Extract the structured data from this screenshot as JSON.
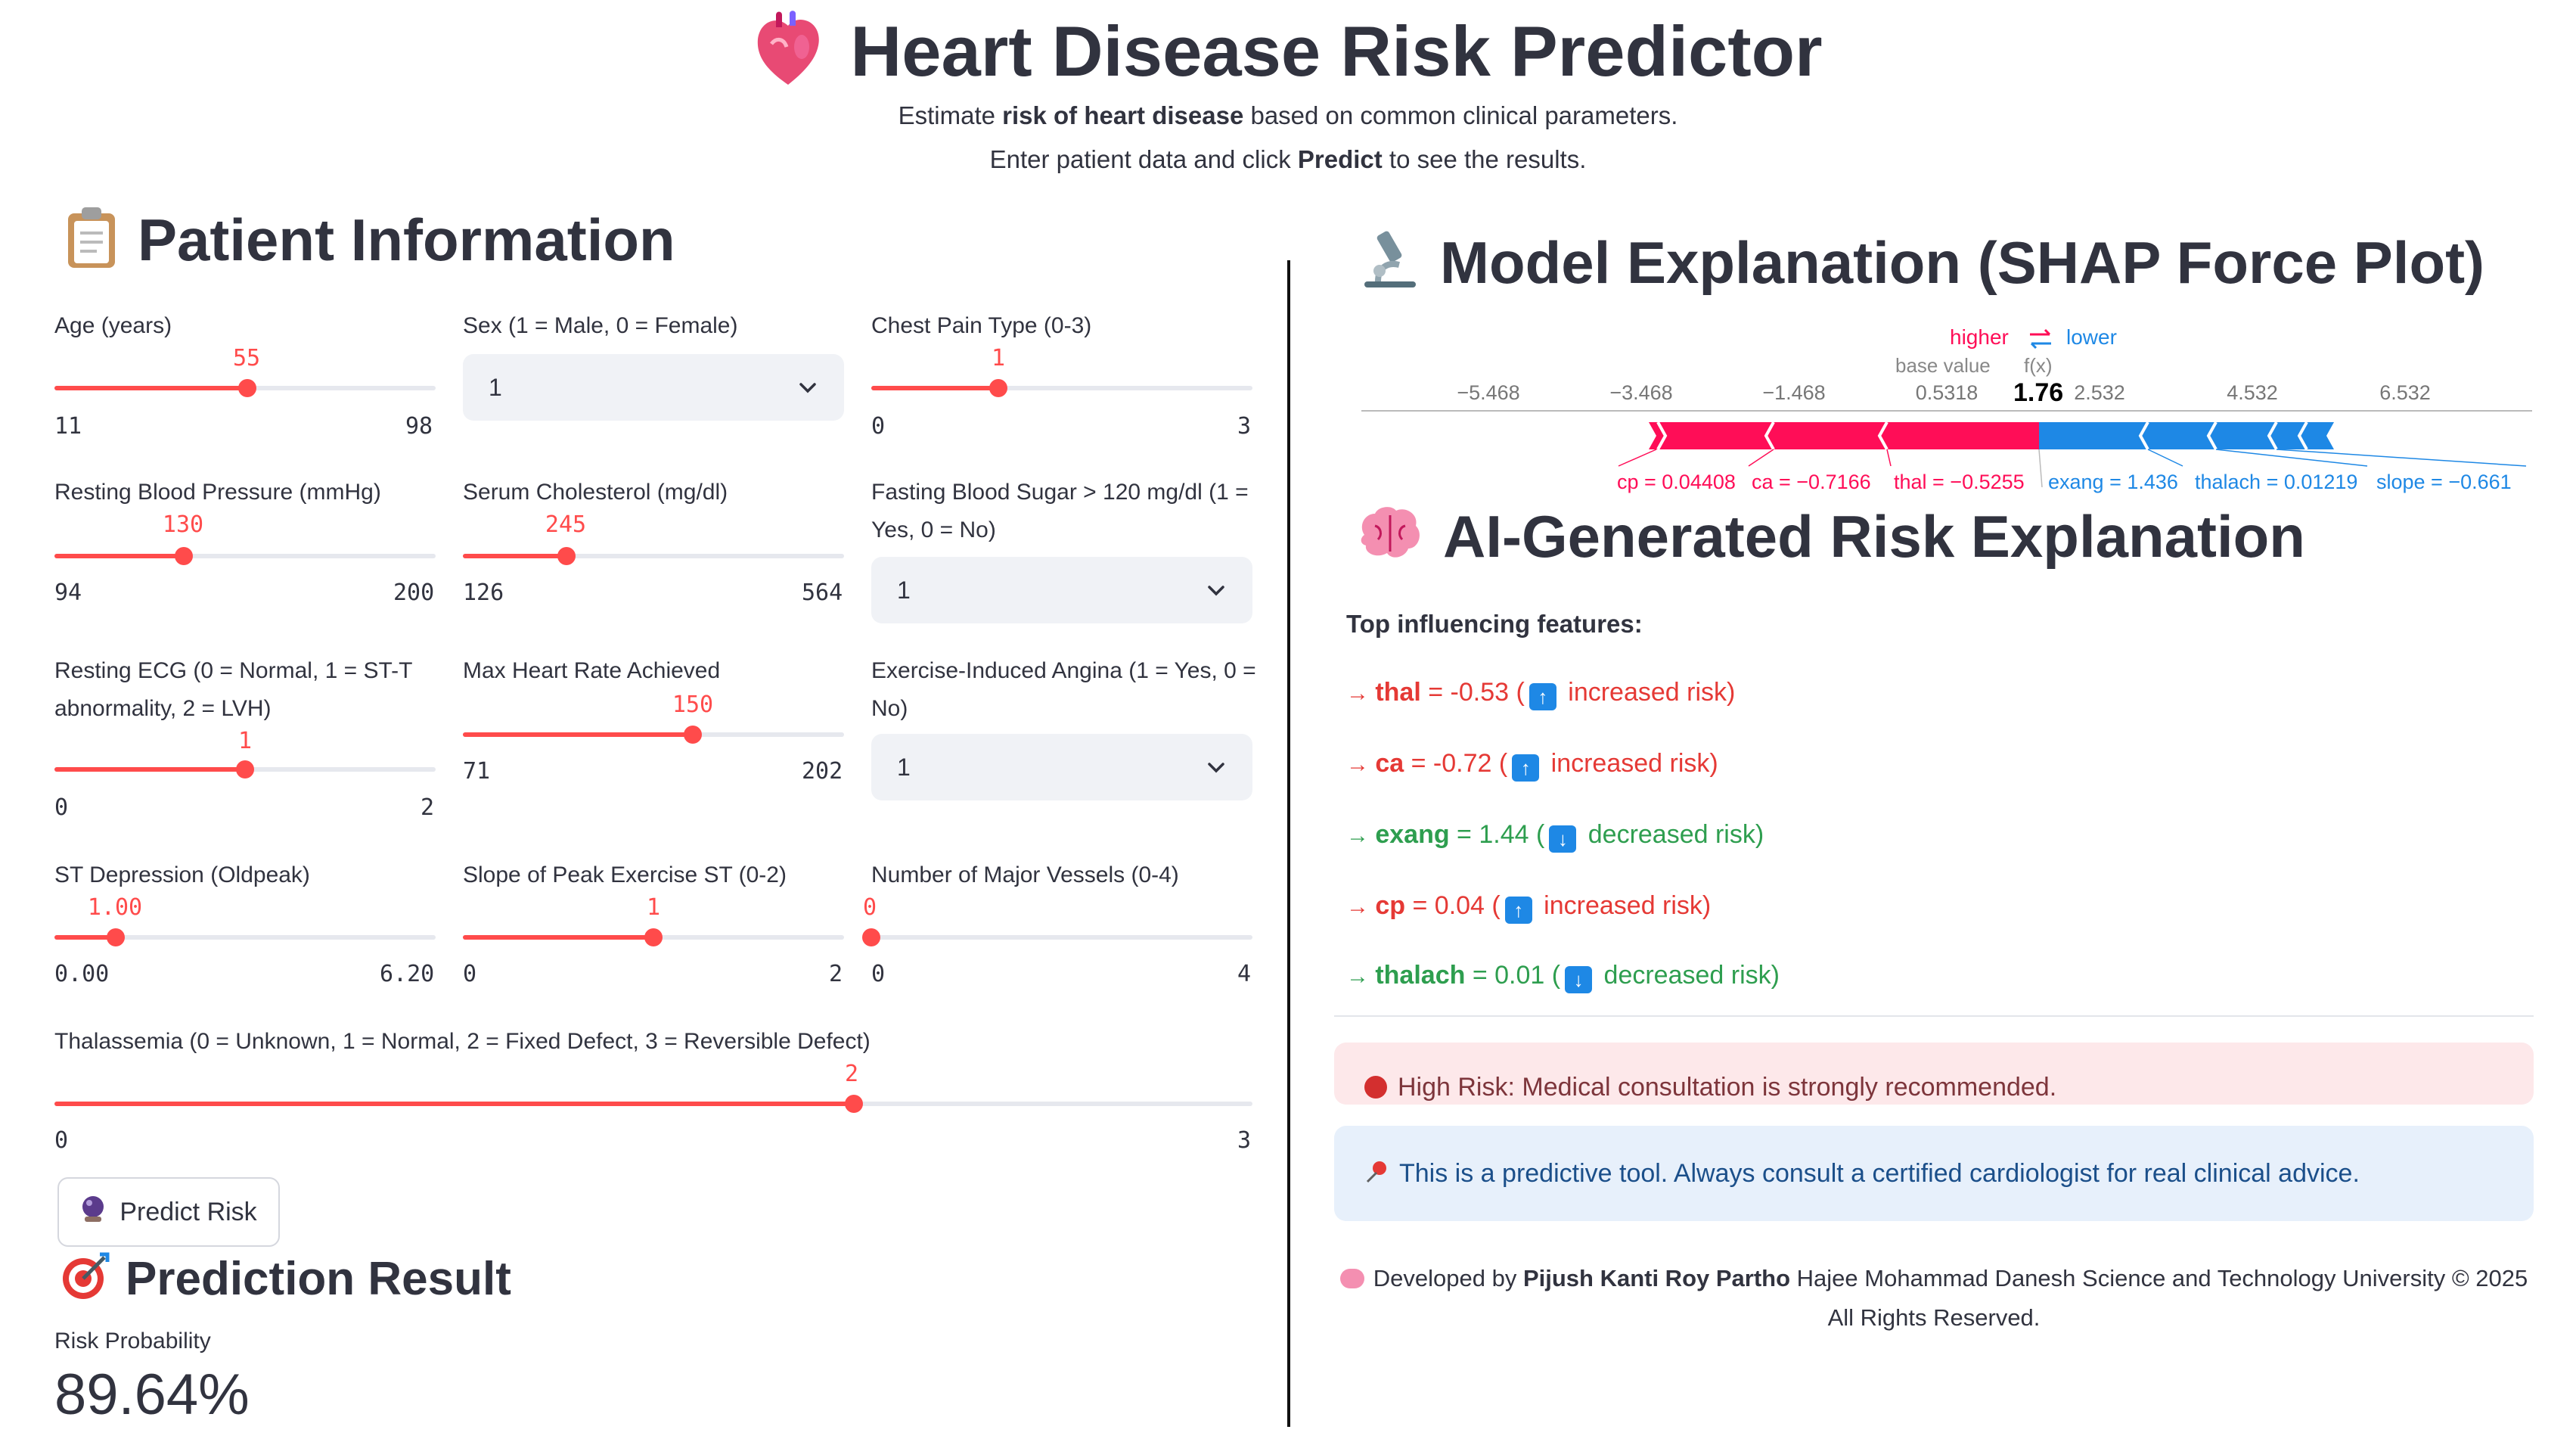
{
  "header": {
    "title": "Heart Disease Risk Predictor",
    "line1_pre": "Estimate ",
    "line1_bold": "risk of heart disease",
    "line1_post": " based on common clinical parameters.",
    "line2_pre": "Enter patient data and click ",
    "line2_bold": "Predict",
    "line2_post": " to see the results."
  },
  "patient": {
    "title": "Patient Information",
    "age": {
      "label": "Age (years)",
      "value": "55",
      "min": "11",
      "max": "98",
      "fraction": 0.506
    },
    "sex": {
      "label": "Sex (1 = Male, 0 = Female)",
      "selected": "1"
    },
    "cp": {
      "label": "Chest Pain Type (0-3)",
      "value": "1",
      "min": "0",
      "max": "3",
      "fraction": 0.333
    },
    "trestbps": {
      "label": "Resting Blood Pressure (mmHg)",
      "value": "130",
      "min": "94",
      "max": "200",
      "fraction": 0.34
    },
    "chol": {
      "label": "Serum Cholesterol (mg/dl)",
      "value": "245",
      "min": "126",
      "max": "564",
      "fraction": 0.272
    },
    "fbs": {
      "label_1": "Fasting Blood Sugar > 120 mg/dl (1 =",
      "label_2": "Yes, 0 = No)",
      "selected": "1"
    },
    "restecg": {
      "label_1": "Resting ECG (0 = Normal, 1 = ST-T",
      "label_2": "abnormality, 2 = LVH)",
      "value": "1",
      "min": "0",
      "max": "2",
      "fraction": 0.5
    },
    "thalach": {
      "label": "Max Heart Rate Achieved",
      "value": "150",
      "min": "71",
      "max": "202",
      "fraction": 0.603
    },
    "exang": {
      "label_1": "Exercise-Induced Angina (1 = Yes, 0 =",
      "label_2": "No)",
      "selected": "1"
    },
    "oldpeak": {
      "label": "ST Depression (Oldpeak)",
      "value": "1.00",
      "min": "0.00",
      "max": "6.20",
      "fraction": 0.161
    },
    "slope": {
      "label": "Slope of Peak Exercise ST (0-2)",
      "value": "1",
      "min": "0",
      "max": "2",
      "fraction": 0.5
    },
    "ca": {
      "label": "Number of Major Vessels (0-4)",
      "value": "0",
      "min": "0",
      "max": "4",
      "fraction": 0
    },
    "thal": {
      "label": "Thalassemia (0 = Unknown, 1 = Normal, 2 = Fixed Defect, 3 = Reversible Defect)",
      "value": "2",
      "min": "0",
      "max": "3",
      "fraction": 0.667
    },
    "predict_button": "Predict Risk"
  },
  "result": {
    "title": "Prediction Result",
    "metric_label": "Risk Probability",
    "metric_value": "89.64%"
  },
  "shap": {
    "title": "Model Explanation (SHAP Force Plot)",
    "higher": "higher",
    "lower": "lower",
    "base_value_label": "base value",
    "fx_label": "f(x)",
    "fx_value": "1.76",
    "ticks": [
      "−5.468",
      "−3.468",
      "−1.468",
      "0.5318",
      "2.532",
      "4.532",
      "6.532"
    ],
    "positive_features": [
      "cp = 0.04408",
      "ca = −0.7166",
      "thal = −0.5255"
    ],
    "negative_features": [
      "exang = 1.436",
      "thalach = 0.01219",
      "slope = −0.661"
    ],
    "color_positive": "#ff0d57",
    "color_negative": "#1e88e5"
  },
  "ai": {
    "title": "AI-Generated Risk Explanation",
    "subtitle": "Top influencing features:",
    "features": [
      {
        "name": "thal",
        "value": " = -0.53 (",
        "effect": " increased risk)",
        "direction": "up"
      },
      {
        "name": "ca",
        "value": " = -0.72 (",
        "effect": " increased risk)",
        "direction": "up"
      },
      {
        "name": "exang",
        "value": " = 1.44 (",
        "effect": " decreased risk)",
        "direction": "down"
      },
      {
        "name": "cp",
        "value": " = 0.04 (",
        "effect": " increased risk)",
        "direction": "up"
      },
      {
        "name": "thalach",
        "value": " = 0.01 (",
        "effect": " decreased risk)",
        "direction": "down"
      }
    ],
    "alert_high": "High Risk: Medical consultation is strongly recommended.",
    "alert_info": "This is a predictive tool. Always consult a certified cardiologist for real clinical advice.",
    "footer_pre": "Developed by ",
    "footer_author": "Pijush Kanti Roy Partho",
    "footer_post": " Hajee Mohammad Danesh Science and Technology University © 2025",
    "footer_line2": "All Rights Reserved."
  }
}
